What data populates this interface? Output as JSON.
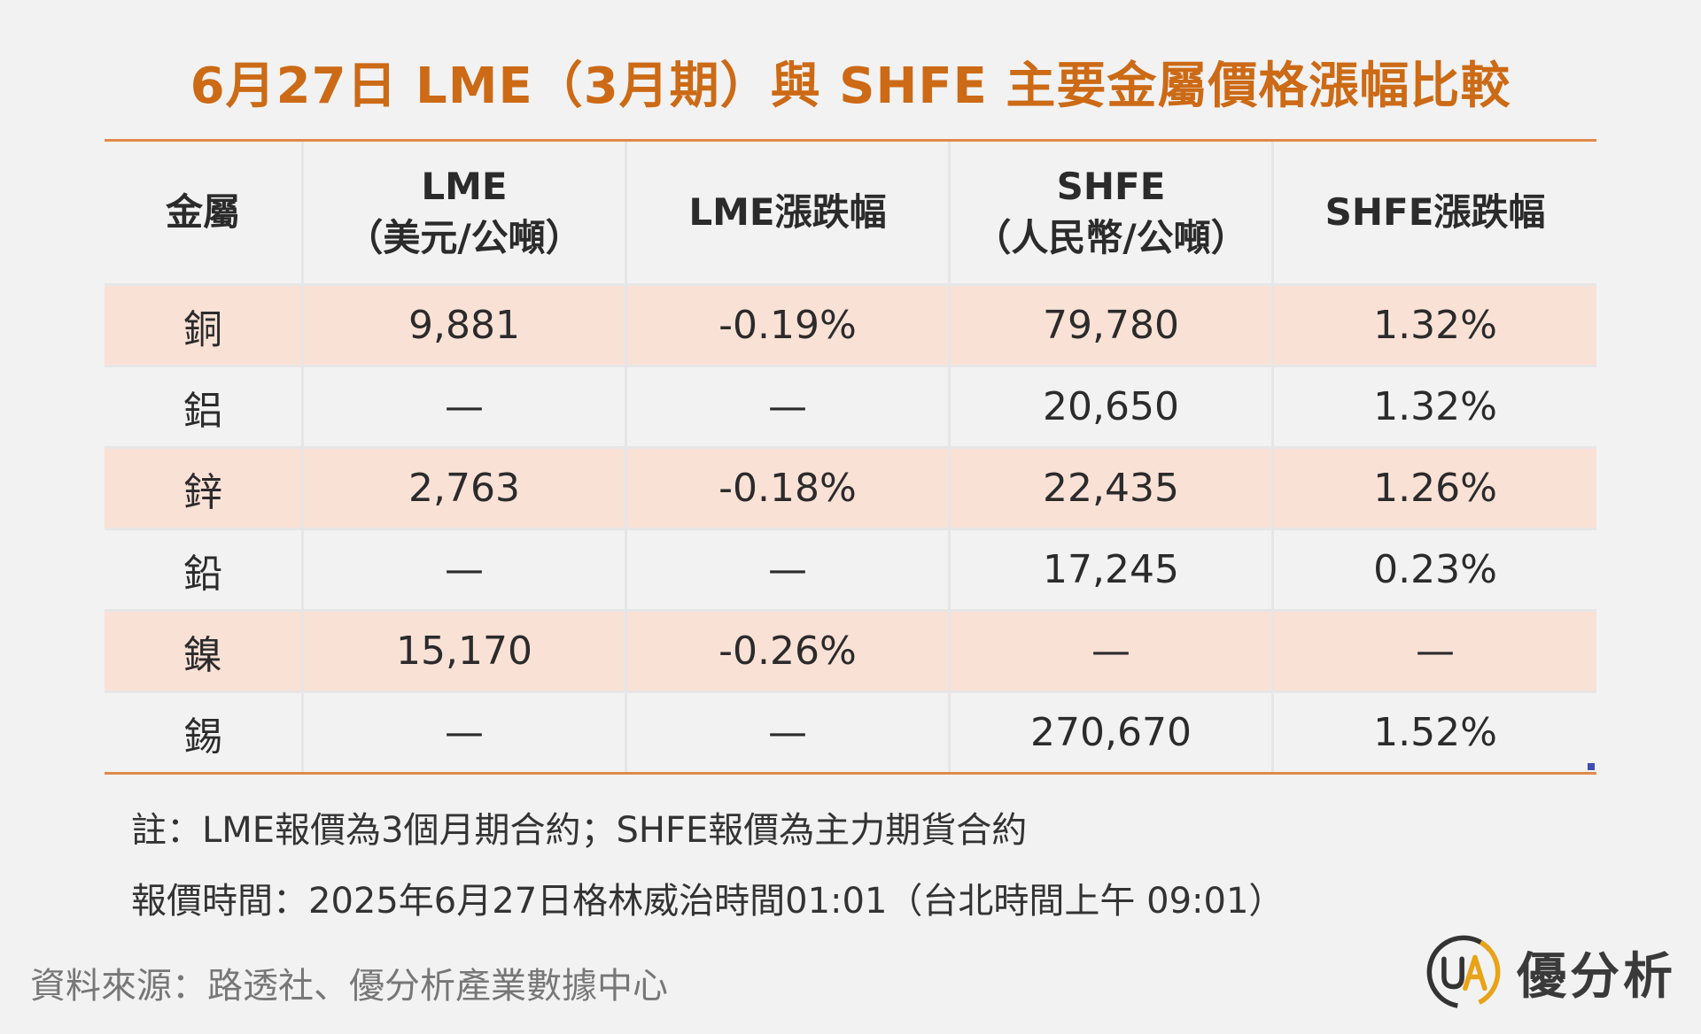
{
  "title": "6月27日 LME（3月期）與 SHFE 主要金屬價格漲幅比較",
  "table": {
    "headers": [
      {
        "line1": "金屬",
        "line2": ""
      },
      {
        "line1": "LME",
        "line2": "（美元/公噸）"
      },
      {
        "line1": "LME漲跌幅",
        "line2": ""
      },
      {
        "line1": "SHFE",
        "line2": "（人民幣/公噸）"
      },
      {
        "line1": "SHFE漲跌幅",
        "line2": ""
      }
    ],
    "rows": [
      [
        "銅",
        "9,881",
        "-0.19%",
        "79,780",
        "1.32%"
      ],
      [
        "鋁",
        "—",
        "—",
        "20,650",
        "1.32%"
      ],
      [
        "鋅",
        "2,763",
        "-0.18%",
        "22,435",
        "1.26%"
      ],
      [
        "鉛",
        "—",
        "—",
        "17,245",
        "0.23%"
      ],
      [
        "鎳",
        "15,170",
        "-0.26%",
        "—",
        "—"
      ],
      [
        "錫",
        "—",
        "—",
        "270,670",
        "1.52%"
      ]
    ]
  },
  "notes": {
    "note1": "註：LME報價為3個月期合約；SHFE報價為主力期貨合約",
    "note2": "報價時間：2025年6月27日格林威治時間01:01（台北時間上午 09:01）"
  },
  "source": "資料來源：路透社、優分析產業數據中心",
  "logo": {
    "icon": "ua-logo-icon",
    "text": "優分析",
    "ring_color": "#e8a317",
    "ring_dark": "#333333"
  },
  "colors": {
    "title": "#cc6a16",
    "rule": "#e08a4a",
    "shade": "#fae1d6"
  }
}
